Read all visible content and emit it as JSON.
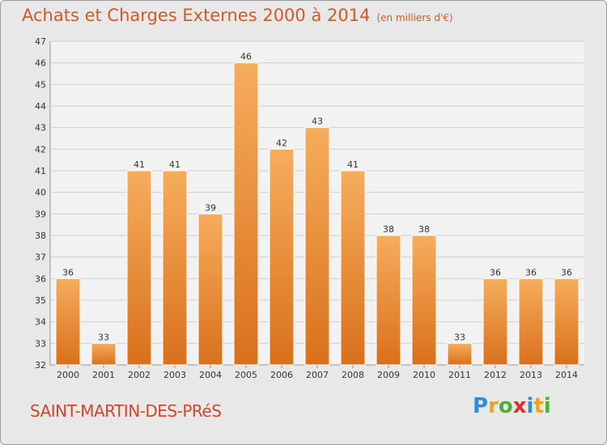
{
  "title": "Achats et Charges Externes 2000 à 2014",
  "unit_note": "(en milliers d'€)",
  "city": "SAINT-MARTIN-DES-PRéS",
  "brand": {
    "letters": [
      "P",
      "r",
      "o",
      "x",
      "i",
      "t",
      "i"
    ],
    "colors": [
      "#2f8fd6",
      "#f0a11e",
      "#4caf3a",
      "#d8322a",
      "#2f8fd6",
      "#f0a11e",
      "#4caf3a"
    ]
  },
  "colors": {
    "bar": "#e8832a",
    "bar_light": "#f6ad5c",
    "axis_text": "#333333",
    "grid": "#cfcfcf"
  },
  "chart_data": {
    "type": "bar",
    "categories": [
      "2000",
      "2001",
      "2002",
      "2003",
      "2004",
      "2005",
      "2006",
      "2007",
      "2008",
      "2009",
      "2010",
      "2011",
      "2012",
      "2013",
      "2014"
    ],
    "values": [
      36,
      33,
      41,
      41,
      39,
      46,
      42,
      43,
      41,
      38,
      38,
      33,
      36,
      36,
      36
    ],
    "ylim": [
      32,
      47
    ],
    "yticks": [
      32,
      33,
      34,
      35,
      36,
      37,
      38,
      39,
      40,
      41,
      42,
      43,
      44,
      45,
      46,
      47
    ],
    "grid": true
  }
}
